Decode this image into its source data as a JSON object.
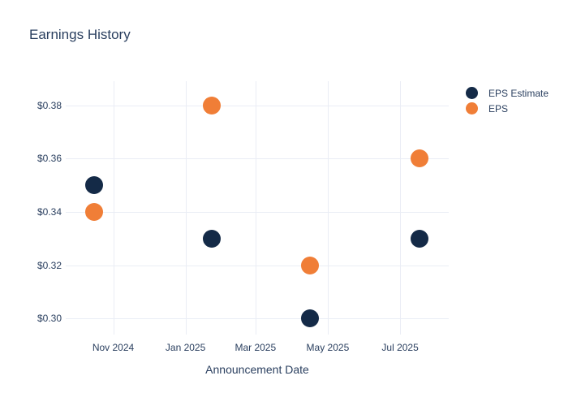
{
  "page": {
    "background": "#ffffff",
    "text_color": "#2a3f5f"
  },
  "chart_data": {
    "type": "scatter",
    "title": "Earnings History",
    "xlabel": "Announcement Date",
    "ylabel": "",
    "x": [
      "2024-10-16",
      "2025-01-23",
      "2025-04-16",
      "2025-07-17"
    ],
    "series": [
      {
        "name": "EPS Estimate",
        "color": "#142a47",
        "values": [
          0.35,
          0.33,
          0.3,
          0.33
        ]
      },
      {
        "name": "EPS",
        "color": "#f07e37",
        "values": [
          0.34,
          0.38,
          0.32,
          0.36
        ]
      }
    ],
    "x_ticks": [
      "2024-11-01",
      "2025-01-01",
      "2025-03-01",
      "2025-05-01",
      "2025-07-01"
    ],
    "x_tick_labels": [
      "Nov 2024",
      "Jan 2025",
      "Mar 2025",
      "May 2025",
      "Jul 2025"
    ],
    "y_ticks": [
      0.3,
      0.32,
      0.34,
      0.36,
      0.38
    ],
    "y_tick_labels": [
      "$0.30",
      "$0.32",
      "$0.34",
      "$0.36",
      "$0.38"
    ],
    "xlim": [
      "2024-09-22",
      "2025-08-11"
    ],
    "ylim": [
      0.294,
      0.389
    ],
    "grid": true,
    "gridline_color": "#eaedf5",
    "legend_position": "right",
    "marker_size_px": 22
  }
}
